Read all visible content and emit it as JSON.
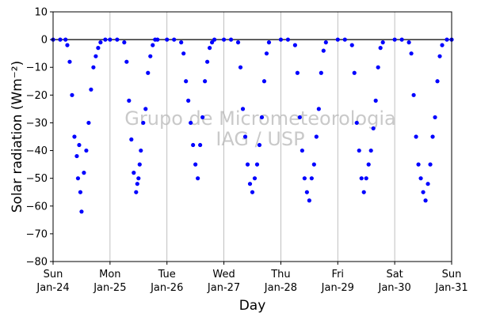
{
  "chart_data": {
    "type": "scatter",
    "title": "",
    "xlabel": "Day",
    "ylabel": "Solar radiation (Wm⁻²)",
    "ylim": [
      -80,
      10
    ],
    "yticks": [
      10,
      0,
      -10,
      -20,
      -30,
      -40,
      -50,
      -60,
      -70,
      -80
    ],
    "xlim": [
      "2021-01-24",
      "2021-01-31"
    ],
    "xticks": [
      {
        "date": "2021-01-24",
        "weekday": "Sun",
        "label": "Jan-24"
      },
      {
        "date": "2021-01-25",
        "weekday": "Mon",
        "label": "Jan-25"
      },
      {
        "date": "2021-01-26",
        "weekday": "Tue",
        "label": "Jan-26"
      },
      {
        "date": "2021-01-27",
        "weekday": "Wed",
        "label": "Jan-27"
      },
      {
        "date": "2021-01-28",
        "weekday": "Thu",
        "label": "Jan-28"
      },
      {
        "date": "2021-01-29",
        "weekday": "Fri",
        "label": "Jan-29"
      },
      {
        "date": "2021-01-30",
        "weekday": "Sat",
        "label": "Jan-30"
      },
      {
        "date": "2021-01-31",
        "weekday": "Sun",
        "label": "Jan-31"
      }
    ],
    "grid": "vertical",
    "zero_line": true,
    "marker_color": "#0000ff",
    "watermark": [
      "Grupo de Micrometeorologia",
      "IAG / USP"
    ],
    "series": [
      {
        "x": [
          "2021-01-24 00:00",
          "2021-01-24 03:00",
          "2021-01-24 05:15",
          "2021-01-24 06:00",
          "2021-01-24 07:00",
          "2021-01-24 08:00",
          "2021-01-24 09:00",
          "2021-01-24 10:00",
          "2021-01-24 10:30",
          "2021-01-24 11:00",
          "2021-01-24 11:30",
          "2021-01-24 12:00",
          "2021-01-24 13:00",
          "2021-01-24 14:00",
          "2021-01-24 15:00",
          "2021-01-24 16:00",
          "2021-01-24 17:00",
          "2021-01-24 18:00",
          "2021-01-24 19:00",
          "2021-01-24 20:00",
          "2021-01-24 22:00",
          "2021-01-25 00:00",
          "2021-01-25 03:00",
          "2021-01-25 06:00",
          "2021-01-25 07:00",
          "2021-01-25 08:00",
          "2021-01-25 09:00",
          "2021-01-25 10:00",
          "2021-01-25 11:00",
          "2021-01-25 11:30",
          "2021-01-25 12:00",
          "2021-01-25 12:30",
          "2021-01-25 13:00",
          "2021-01-25 14:00",
          "2021-01-25 15:00",
          "2021-01-25 16:00",
          "2021-01-25 17:00",
          "2021-01-25 18:00",
          "2021-01-25 19:00",
          "2021-01-25 20:00",
          "2021-01-26 00:00",
          "2021-01-26 03:00",
          "2021-01-26 06:00",
          "2021-01-26 07:00",
          "2021-01-26 08:00",
          "2021-01-26 09:00",
          "2021-01-26 10:00",
          "2021-01-26 11:00",
          "2021-01-26 12:00",
          "2021-01-26 13:00",
          "2021-01-26 14:00",
          "2021-01-26 15:00",
          "2021-01-26 16:00",
          "2021-01-26 17:00",
          "2021-01-26 18:00",
          "2021-01-26 19:00",
          "2021-01-26 20:00",
          "2021-01-27 00:00",
          "2021-01-27 03:00",
          "2021-01-27 06:00",
          "2021-01-27 07:00",
          "2021-01-27 08:00",
          "2021-01-27 09:00",
          "2021-01-27 10:00",
          "2021-01-27 11:00",
          "2021-01-27 12:00",
          "2021-01-27 13:00",
          "2021-01-27 14:00",
          "2021-01-27 15:00",
          "2021-01-27 16:00",
          "2021-01-27 17:00",
          "2021-01-27 18:00",
          "2021-01-27 19:00",
          "2021-01-28 00:00",
          "2021-01-28 03:00",
          "2021-01-28 06:00",
          "2021-01-28 07:00",
          "2021-01-28 08:00",
          "2021-01-28 09:00",
          "2021-01-28 10:00",
          "2021-01-28 11:00",
          "2021-01-28 12:00",
          "2021-01-28 13:00",
          "2021-01-28 14:00",
          "2021-01-28 15:00",
          "2021-01-28 16:00",
          "2021-01-28 17:00",
          "2021-01-28 18:00",
          "2021-01-28 19:00",
          "2021-01-29 00:00",
          "2021-01-29 03:00",
          "2021-01-29 06:00",
          "2021-01-29 07:00",
          "2021-01-29 08:00",
          "2021-01-29 09:00",
          "2021-01-29 10:00",
          "2021-01-29 11:00",
          "2021-01-29 12:00",
          "2021-01-29 13:00",
          "2021-01-29 14:00",
          "2021-01-29 15:00",
          "2021-01-29 16:00",
          "2021-01-29 17:00",
          "2021-01-29 18:00",
          "2021-01-29 19:00",
          "2021-01-30 00:00",
          "2021-01-30 03:00",
          "2021-01-30 06:00",
          "2021-01-30 07:00",
          "2021-01-30 08:00",
          "2021-01-30 09:00",
          "2021-01-30 10:00",
          "2021-01-30 11:00",
          "2021-01-30 12:00",
          "2021-01-30 13:00",
          "2021-01-30 14:00",
          "2021-01-30 15:00",
          "2021-01-30 16:00",
          "2021-01-30 17:00",
          "2021-01-30 18:00",
          "2021-01-30 19:00",
          "2021-01-30 20:00",
          "2021-01-30 22:00",
          "2021-01-31 00:00"
        ],
        "y": [
          0,
          0,
          0,
          -2,
          -8,
          -20,
          -35,
          -42,
          -50,
          -38,
          -55,
          -62,
          -48,
          -40,
          -30,
          -18,
          -10,
          -6,
          -3,
          -1,
          0,
          0,
          0,
          -1,
          -8,
          -22,
          -36,
          -48,
          -55,
          -52,
          -50,
          -45,
          -40,
          -30,
          -25,
          -12,
          -6,
          -2,
          0,
          0,
          0,
          0,
          -1,
          -5,
          -15,
          -22,
          -30,
          -38,
          -45,
          -50,
          -38,
          -28,
          -15,
          -8,
          -3,
          -1,
          0,
          0,
          0,
          -1,
          -10,
          -25,
          -35,
          -45,
          -52,
          -55,
          -50,
          -45,
          -38,
          -28,
          -15,
          -5,
          -1,
          0,
          0,
          -2,
          -12,
          -28,
          -40,
          -50,
          -55,
          -58,
          -50,
          -45,
          -35,
          -25,
          -12,
          -4,
          -1,
          0,
          0,
          -2,
          -12,
          -30,
          -40,
          -50,
          -55,
          -50,
          -45,
          -40,
          -32,
          -22,
          -10,
          -3,
          -1,
          0,
          0,
          -1,
          -5,
          -20,
          -35,
          -45,
          -50,
          -55,
          -58,
          -52,
          -45,
          -35,
          -28,
          -15,
          -6,
          -2,
          0,
          0
        ]
      }
    ]
  }
}
